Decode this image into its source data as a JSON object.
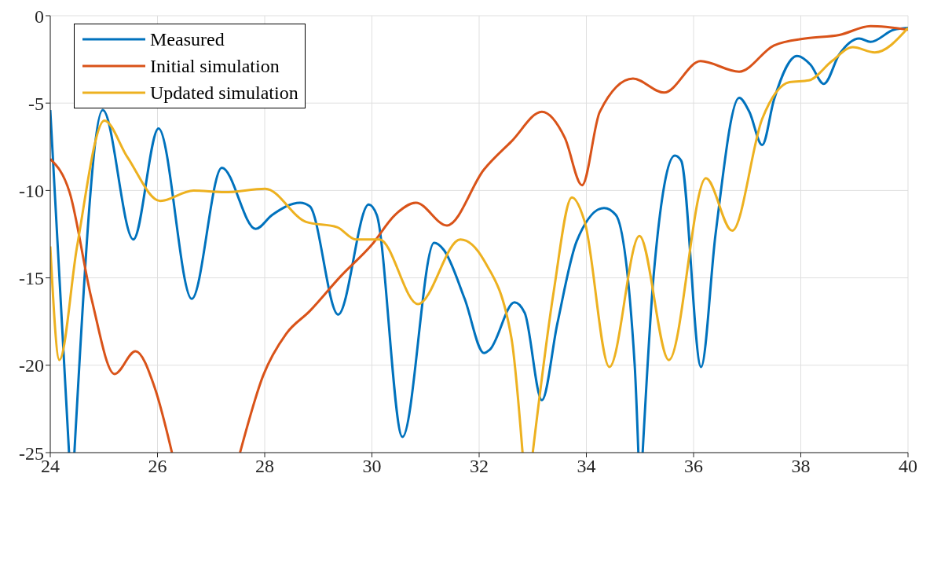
{
  "chart_data": {
    "type": "line",
    "xlim": [
      24,
      40
    ],
    "xticks": [
      24,
      26,
      28,
      30,
      32,
      34,
      36,
      38,
      40
    ],
    "ylim": [
      -25,
      0
    ],
    "yticks": [
      -25,
      -20,
      -15,
      -10,
      -5,
      0
    ],
    "grid": true,
    "legend": "top left",
    "line_style": "solid",
    "series": [
      {
        "name": "Measured",
        "color": "#0072bd",
        "x": [
          24,
          24.35,
          24.4,
          24.45,
          24.98,
          25.55,
          26.02,
          26.64,
          27.2,
          27.83,
          28.14,
          28.66,
          28.84,
          29.37,
          29.94,
          30.09,
          30.57,
          31.16,
          31.34,
          31.73,
          32.09,
          32.2,
          32.66,
          32.85,
          33.17,
          33.46,
          33.82,
          34.33,
          34.55,
          34.9,
          34.97,
          35.01,
          35.05,
          35.26,
          35.65,
          35.77,
          36.14,
          36.41,
          36.85,
          37.04,
          37.28,
          37.5,
          37.93,
          38.18,
          38.43,
          38.72,
          39.09,
          39.3,
          39.74,
          40
        ],
        "values": [
          -5.4,
          -25,
          null,
          -25,
          -5.4,
          -12.8,
          -6.45,
          -16.2,
          -8.7,
          -12.2,
          -11.4,
          -10.7,
          -10.9,
          -17.1,
          -10.8,
          -11.4,
          -24.1,
          -13,
          -13.4,
          -16.2,
          -19.3,
          -19.1,
          -16.4,
          -17,
          -22,
          -17.6,
          -12.9,
          -11,
          -11.4,
          -19.9,
          -25,
          null,
          -25,
          -14.7,
          -8,
          -8.3,
          -20.1,
          -12.5,
          -4.7,
          -5.5,
          -7.4,
          -4.8,
          -2.3,
          -2.8,
          -3.9,
          -2.2,
          -1.3,
          -1.5,
          -0.8,
          -0.7
        ]
      },
      {
        "name": "Initial simulation",
        "color": "#d95319",
        "x": [
          24,
          24.36,
          24.77,
          25.2,
          25.59,
          25.95,
          26.27,
          26.9,
          27.54,
          27.97,
          28.4,
          28.84,
          29.42,
          30,
          30.43,
          30.82,
          31.4,
          32.09,
          32.6,
          33.17,
          33.6,
          33.92,
          34.25,
          34.87,
          35.45,
          36.13,
          36.85,
          37.5,
          38.08,
          38.72,
          39.3,
          40
        ],
        "values": [
          -8.2,
          -10.1,
          -16.2,
          -20.5,
          -19.2,
          -21.3,
          -25,
          null,
          -25,
          -20.6,
          -18.2,
          -16.9,
          -14.9,
          -13.1,
          -11.4,
          -10.7,
          -12,
          -8.8,
          -7.2,
          -5.5,
          -7,
          -9.7,
          -5.5,
          -3.6,
          -4.4,
          -2.6,
          -3.2,
          -1.7,
          -1.3,
          -1.1,
          -0.6,
          -0.8
        ]
      },
      {
        "name": "Updated simulation",
        "color": "#edb120",
        "x": [
          24,
          24.17,
          24.5,
          25.01,
          25.44,
          26.05,
          26.67,
          27.25,
          28.01,
          28.77,
          29.35,
          29.7,
          30.14,
          30.86,
          31.65,
          32.09,
          32.6,
          32.81,
          32.9,
          33,
          33.39,
          33.73,
          33.97,
          34.43,
          34.99,
          35.54,
          36.23,
          36.72,
          37.28,
          37.79,
          38.15,
          38.58,
          38.97,
          39.38,
          40
        ],
        "values": [
          -13.2,
          -19.7,
          -13.2,
          -6,
          -8.1,
          -10.6,
          -10,
          -10.1,
          -9.9,
          -11.8,
          -12.1,
          -12.8,
          -12.8,
          -16.5,
          -12.8,
          -14,
          -18.4,
          -25,
          null,
          -25,
          -15.8,
          -10.4,
          -11.8,
          -20.1,
          -12.6,
          -19.7,
          -9.3,
          -12.3,
          -5.9,
          -3.8,
          -3.7,
          -2.6,
          -1.8,
          -2.1,
          -0.7
        ]
      }
    ]
  }
}
